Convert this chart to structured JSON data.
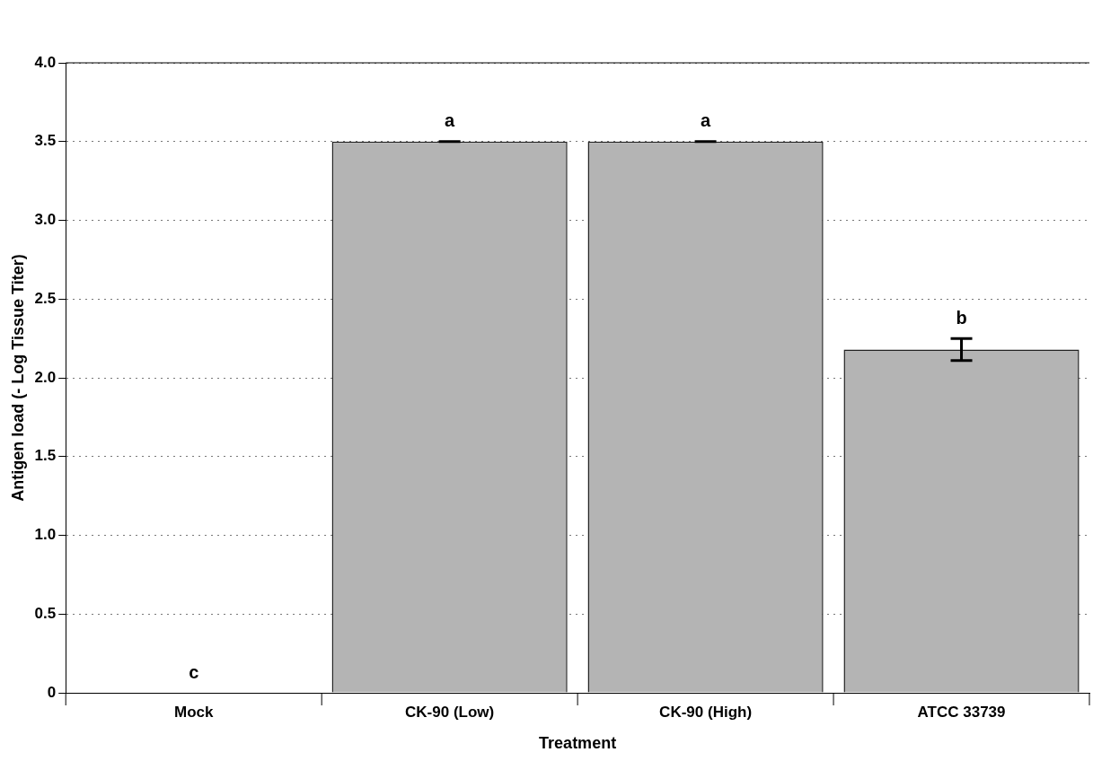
{
  "chart_data": {
    "type": "bar",
    "xlabel": "Treatment",
    "ylabel": "Antigen load (- Log Tissue Titer)",
    "categories": [
      "Mock",
      "CK-90 (Low)",
      "CK-90 (High)",
      "ATCC 33739"
    ],
    "values": [
      0,
      3.5,
      3.5,
      2.18
    ],
    "errors": [
      null,
      0,
      0,
      0.07
    ],
    "color": "#b4b4b4",
    "ylim": [
      0,
      4
    ],
    "yticks": [
      0,
      {
        "value": 0.5,
        "label": "0.5"
      },
      {
        "value": 1,
        "label": "1.0"
      },
      {
        "value": 1.5,
        "label": "1.5"
      },
      {
        "value": 2,
        "label": "2.0"
      },
      {
        "value": 2.5,
        "label": "2.5"
      },
      {
        "value": 3,
        "label": "3.0"
      },
      {
        "value": 3.5,
        "label": "3.5"
      },
      {
        "value": 4,
        "label": "4.0"
      }
    ],
    "grid": "y",
    "legend": false,
    "annotations": [
      {
        "text": "c",
        "x": "Mock",
        "y": 0
      },
      {
        "text": "a",
        "x": "CK-90 (Low)",
        "y": 3.5
      },
      {
        "text": "a",
        "x": "CK-90 (High)",
        "y": 3.5
      },
      {
        "text": "b",
        "x": "ATCC 33739",
        "y": 2.25
      }
    ]
  }
}
